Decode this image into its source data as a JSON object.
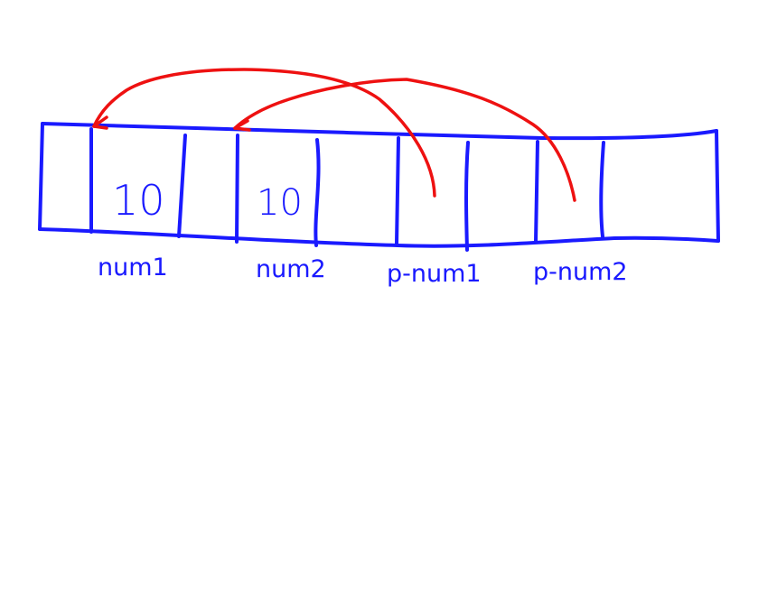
{
  "memory": {
    "cells": [
      {
        "label": "",
        "value": ""
      },
      {
        "label": "num1",
        "value": "10"
      },
      {
        "label": "",
        "value": ""
      },
      {
        "label": "num2",
        "value": "10"
      },
      {
        "label": "",
        "value": ""
      },
      {
        "label": "p-num1",
        "value": ""
      },
      {
        "label": "",
        "value": ""
      },
      {
        "label": "p-num2",
        "value": ""
      },
      {
        "label": "",
        "value": ""
      }
    ]
  },
  "arrows": [
    {
      "from": "p-num1",
      "to": "num1"
    },
    {
      "from": "p-num2",
      "to": "num2"
    }
  ],
  "colors": {
    "ink": "#1a1aff",
    "pointer": "#ee1111",
    "background": "#ffffff"
  }
}
